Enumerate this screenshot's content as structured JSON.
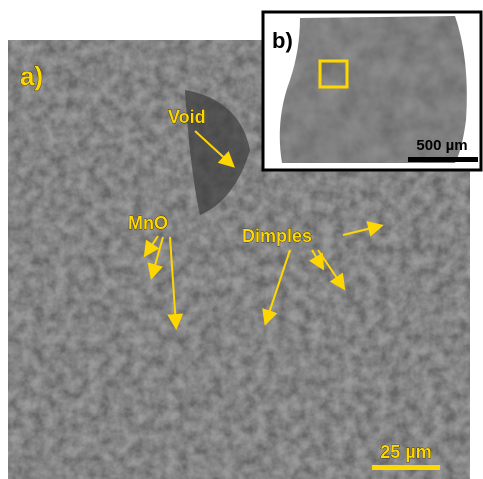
{
  "panel_a": {
    "label": "a)",
    "annotations": {
      "void": "Void",
      "mno": "MnO",
      "dimples": "Dimples"
    },
    "scale_bar": "25 µm"
  },
  "panel_b": {
    "label": "b)",
    "scale_bar": "500 µm"
  }
}
